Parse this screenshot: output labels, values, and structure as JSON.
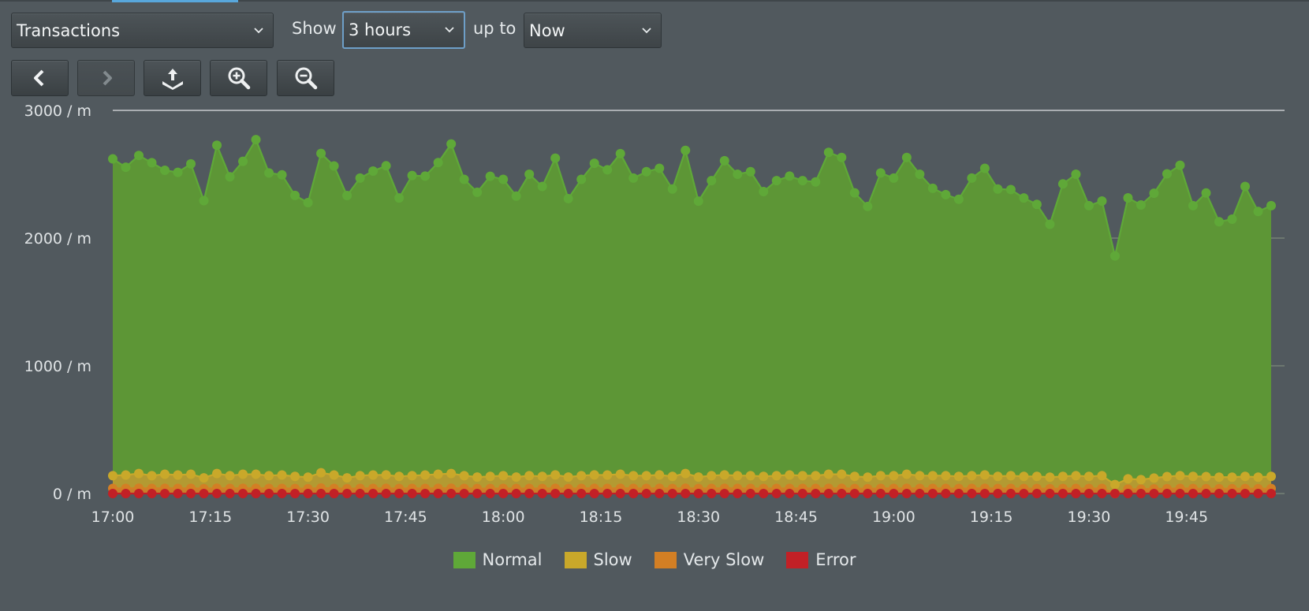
{
  "toolbar": {
    "metric_select": "Transactions",
    "show_label": "Show",
    "range_select": "3 hours",
    "upto_label": "up to",
    "end_select": "Now"
  },
  "icons": {
    "prev": "chevron-left-icon",
    "next": "chevron-right-icon",
    "export": "export-icon",
    "zoom_in": "zoom-in-icon",
    "zoom_out": "zoom-out-icon"
  },
  "colors": {
    "normal": "#5fa838",
    "slow": "#c9a82a",
    "very_slow": "#d37f24",
    "error": "#c22026",
    "normal_fill": "#5d9636",
    "grid": "#c9d1b4",
    "background": "#51595e"
  },
  "chart_data": {
    "type": "area",
    "stacked": true,
    "x_start": "17:00",
    "x_step_minutes": 2,
    "x_ticks": [
      "17:00",
      "17:15",
      "17:30",
      "17:45",
      "18:00",
      "18:15",
      "18:30",
      "18:45",
      "19:00",
      "19:15",
      "19:30",
      "19:45"
    ],
    "y_ticks": [
      "0 / m",
      "1000 / m",
      "2000 / m",
      "3000 / m"
    ],
    "ylim": [
      0,
      3000
    ],
    "grid": true,
    "legend_position": "bottom-center",
    "series": [
      {
        "name": "Normal",
        "color": "#5fa838",
        "values": [
          2480,
          2410,
          2490,
          2450,
          2380,
          2370,
          2430,
          2170,
          2570,
          2340,
          2450,
          2620,
          2370,
          2350,
          2200,
          2150,
          2500,
          2420,
          2210,
          2330,
          2380,
          2420,
          2180,
          2350,
          2340,
          2440,
          2580,
          2320,
          2230,
          2350,
          2320,
          2200,
          2360,
          2270,
          2480,
          2180,
          2320,
          2440,
          2390,
          2510,
          2330,
          2380,
          2400,
          2250,
          2530,
          2160,
          2310,
          2460,
          2360,
          2380,
          2230,
          2310,
          2340,
          2310,
          2300,
          2520,
          2480,
          2220,
          2120,
          2370,
          2330,
          2480,
          2360,
          2250,
          2200,
          2170,
          2330,
          2400,
          2250,
          2240,
          2180,
          2130,
          1980,
          2290,
          2360,
          2120,
          2150,
          1790,
          2200,
          2150,
          2230,
          2370,
          2430,
          2120,
          2220,
          2000,
          2020,
          2270,
          2080,
          2120
        ]
      },
      {
        "name": "Slow",
        "color": "#c9a82a",
        "values": [
          100,
          105,
          115,
          100,
          110,
          105,
          110,
          85,
          115,
          100,
          110,
          110,
          100,
          105,
          95,
          90,
          120,
          105,
          85,
          100,
          105,
          105,
          95,
          100,
          105,
          110,
          115,
          100,
          90,
          95,
          100,
          90,
          100,
          95,
          105,
          90,
          100,
          105,
          105,
          110,
          100,
          100,
          105,
          95,
          115,
          90,
          100,
          105,
          100,
          100,
          95,
          100,
          105,
          100,
          100,
          110,
          110,
          95,
          90,
          100,
          100,
          110,
          100,
          100,
          100,
          95,
          100,
          105,
          95,
          100,
          95,
          95,
          90,
          95,
          100,
          95,
          100,
          70,
          80,
          75,
          85,
          95,
          100,
          95,
          95,
          90,
          90,
          95,
          90,
          95
        ]
      },
      {
        "name": "Very Slow",
        "color": "#d37f24",
        "values": [
          40,
          40,
          42,
          40,
          41,
          40,
          41,
          38,
          42,
          40,
          41,
          41,
          40,
          40,
          39,
          38,
          43,
          40,
          38,
          40,
          40,
          41,
          39,
          40,
          40,
          41,
          42,
          40,
          39,
          39,
          40,
          39,
          40,
          39,
          41,
          39,
          40,
          41,
          40,
          41,
          40,
          40,
          41,
          39,
          42,
          39,
          40,
          41,
          40,
          40,
          39,
          40,
          40,
          40,
          40,
          41,
          41,
          39,
          38,
          40,
          40,
          41,
          40,
          40,
          40,
          39,
          40,
          41,
          39,
          40,
          39,
          39,
          38,
          39,
          40,
          39,
          40,
          0,
          35,
          34,
          36,
          38,
          40,
          39,
          38,
          38,
          38,
          39,
          38,
          39
        ]
      },
      {
        "name": "Error",
        "color": "#c22026",
        "values": [
          0,
          0,
          0,
          0,
          0,
          0,
          0,
          0,
          0,
          0,
          0,
          0,
          0,
          0,
          0,
          0,
          0,
          0,
          0,
          0,
          0,
          0,
          0,
          0,
          0,
          0,
          0,
          0,
          0,
          0,
          0,
          0,
          0,
          0,
          0,
          0,
          0,
          0,
          0,
          0,
          0,
          0,
          0,
          0,
          0,
          0,
          0,
          0,
          0,
          0,
          0,
          0,
          0,
          0,
          0,
          0,
          0,
          0,
          0,
          0,
          0,
          0,
          0,
          0,
          0,
          0,
          0,
          0,
          0,
          0,
          0,
          0,
          0,
          0,
          0,
          0,
          0,
          0,
          0,
          0,
          0,
          0,
          0,
          0,
          0,
          0,
          0,
          0,
          0,
          0
        ]
      }
    ]
  }
}
